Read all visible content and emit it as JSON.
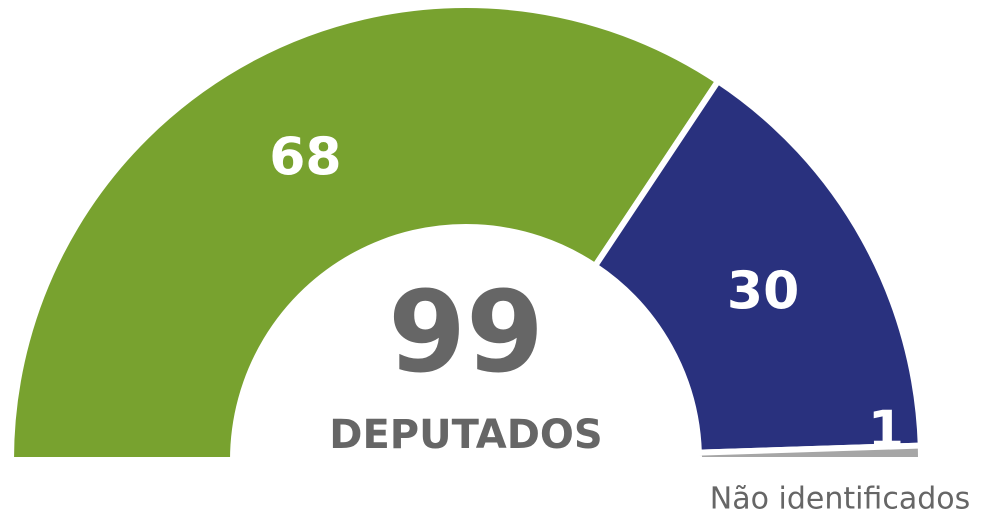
{
  "chart_data": {
    "type": "semi-donut",
    "categories": [
      null,
      null,
      "Não identificados"
    ],
    "values": [
      68,
      30,
      1
    ],
    "colors": [
      "#78a22f",
      "#29317e",
      "#a6a6a6"
    ],
    "total": 99,
    "total_label": "DEPUTADOS"
  }
}
